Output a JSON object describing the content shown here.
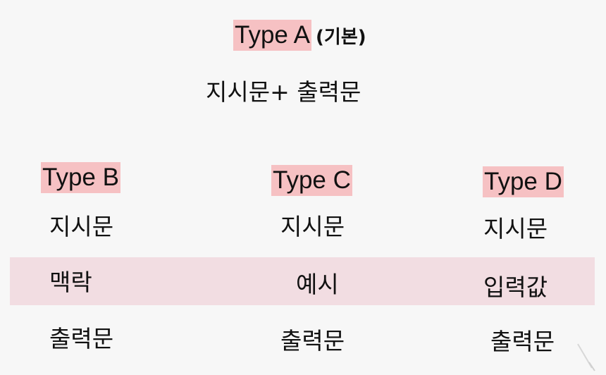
{
  "type_a": {
    "label": "Type A",
    "note": "(기본)",
    "formula": "지시문+ 출력문"
  },
  "columns": [
    {
      "label": "Type B",
      "rows": [
        "지시문",
        "맥락",
        "출력문"
      ]
    },
    {
      "label": "Type C",
      "rows": [
        "지시문",
        "예시",
        "출력문"
      ]
    },
    {
      "label": "Type D",
      "rows": [
        "지시문",
        "입력값",
        "출력문"
      ]
    }
  ],
  "colors": {
    "label_highlight": "#f6c1c3",
    "middle_row_band": "#f2dde2",
    "background": "#f7f7f7"
  }
}
